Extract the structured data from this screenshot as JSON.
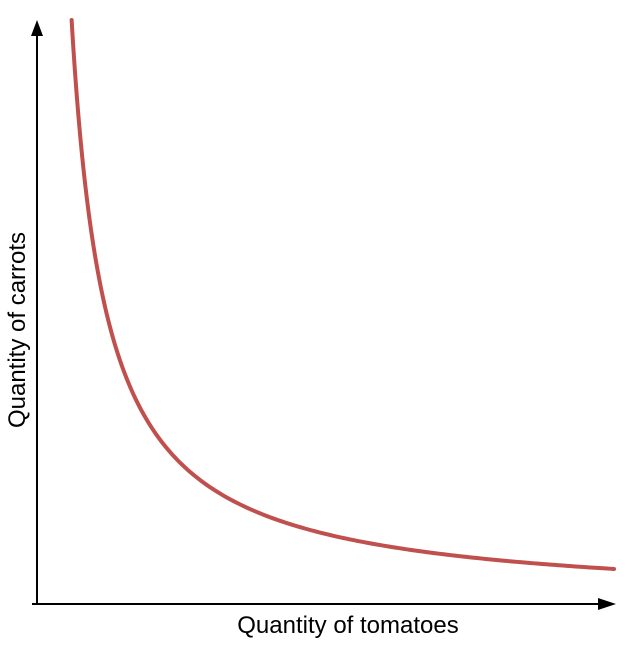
{
  "chart_data": {
    "type": "line",
    "title": "",
    "xlabel": "Quantity of tomatoes",
    "ylabel": "Quantity of carrots",
    "grid": false,
    "legend": "none",
    "axis_ticks": false,
    "series": [
      {
        "color": "#c0504d",
        "points": [
          [
            0.06,
            1.0
          ],
          [
            0.1,
            0.6
          ],
          [
            0.15,
            0.4
          ],
          [
            0.2,
            0.3
          ],
          [
            0.3,
            0.2
          ],
          [
            0.4,
            0.15
          ],
          [
            0.5,
            0.12
          ],
          [
            0.6,
            0.1
          ],
          [
            0.7,
            0.086
          ],
          [
            0.8,
            0.075
          ],
          [
            0.9,
            0.067
          ],
          [
            1.0,
            0.06
          ]
        ]
      }
    ],
    "curve_shape": "convex indifference curve (x * y = constant)"
  }
}
